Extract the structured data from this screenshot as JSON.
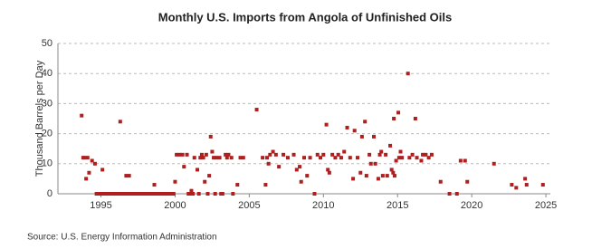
{
  "chart_data": {
    "type": "scatter",
    "title": "Monthly U.S. Imports from Angola of Unfinished Oils",
    "y_label": "Thousand Barrels per Day",
    "source": "Source: U.S. Energy Information Administration",
    "color": "#b01e1e",
    "grid": true,
    "xlim": [
      1992.1,
      2025.3
    ],
    "xticks": [
      1995,
      2000,
      2005,
      2010,
      2015,
      2020,
      2025
    ],
    "ylim": [
      0,
      50
    ],
    "yticks": [
      0,
      10,
      20,
      30,
      40,
      50
    ],
    "x": [
      1993.7,
      1993.8,
      1993.9,
      1994.0,
      1994.1,
      1994.2,
      1994.4,
      1994.6,
      1995.1,
      1996.3,
      1996.7,
      1996.9,
      1998.6,
      1994.7,
      1994.8,
      1994.9,
      1995.0,
      1995.2,
      1995.3,
      1995.4,
      1995.5,
      1995.6,
      1995.7,
      1995.8,
      1995.9,
      1996.0,
      1996.1,
      1996.2,
      1996.4,
      1996.5,
      1996.6,
      1996.8,
      1997.0,
      1997.1,
      1997.2,
      1997.3,
      1997.4,
      1997.5,
      1997.6,
      1997.7,
      1997.8,
      1997.9,
      1998.0,
      1998.1,
      1998.2,
      1998.3,
      1998.4,
      1998.5,
      1998.7,
      1998.8,
      1998.9,
      1999.0,
      1999.1,
      1999.2,
      1999.3,
      1999.4,
      1999.5,
      1999.6,
      1999.7,
      1999.8,
      1999.9,
      2000.0,
      2000.1,
      2000.3,
      2000.5,
      2000.6,
      2000.8,
      2000.9,
      2001.0,
      2001.1,
      2001.2,
      2001.3,
      2001.5,
      2001.6,
      2001.7,
      2001.8,
      2001.9,
      2002.0,
      2002.1,
      2002.2,
      2002.3,
      2002.4,
      2002.5,
      2002.6,
      2002.7,
      2002.8,
      2003.0,
      2003.1,
      2003.2,
      2003.4,
      2003.5,
      2003.6,
      2003.8,
      2003.9,
      2004.2,
      2004.4,
      2004.6,
      2005.5,
      2005.9,
      2006.1,
      2006.2,
      2006.3,
      2006.4,
      2006.6,
      2006.8,
      2007.0,
      2007.3,
      2007.6,
      2008.0,
      2008.2,
      2008.4,
      2008.5,
      2008.7,
      2008.9,
      2009.1,
      2009.4,
      2009.6,
      2009.8,
      2010.0,
      2010.2,
      2010.3,
      2010.4,
      2010.6,
      2010.8,
      2011.0,
      2011.2,
      2011.4,
      2011.6,
      2011.8,
      2012.0,
      2012.1,
      2012.3,
      2012.5,
      2012.6,
      2012.8,
      2012.9,
      2013.1,
      2013.2,
      2013.4,
      2013.5,
      2013.7,
      2013.8,
      2013.9,
      2014.0,
      2014.2,
      2014.3,
      2014.5,
      2014.6,
      2014.7,
      2014.8,
      2014.9,
      2014.75,
      2015.05,
      2015.1,
      2015.2,
      2015.3,
      2015.7,
      2015.8,
      2016.0,
      2016.2,
      2016.3,
      2016.6,
      2016.7,
      2016.9,
      2017.1,
      2017.3,
      2017.9,
      2018.5,
      2019.0,
      2019.25,
      2019.55,
      2019.7,
      2021.5,
      2022.7,
      2023.0,
      2023.6,
      2023.7,
      2024.8
    ],
    "values": [
      26,
      12,
      12,
      5,
      12,
      7,
      11,
      10,
      8,
      24,
      6,
      6,
      3,
      0,
      0,
      0,
      0,
      0,
      0,
      0,
      0,
      0,
      0,
      0,
      0,
      0,
      0,
      0,
      0,
      0,
      0,
      0,
      0,
      0,
      0,
      0,
      0,
      0,
      0,
      0,
      0,
      0,
      0,
      0,
      0,
      0,
      0,
      0,
      0,
      0,
      0,
      0,
      0,
      0,
      0,
      0,
      0,
      0,
      0,
      0,
      0,
      4,
      13,
      13,
      13,
      9,
      13,
      0,
      0,
      1,
      0,
      12,
      8,
      0,
      12,
      13,
      12,
      4,
      13,
      0,
      6,
      19,
      14,
      12,
      0,
      12,
      12,
      0,
      0,
      13,
      12,
      13,
      12,
      0,
      3,
      12,
      12,
      28,
      12,
      3,
      12,
      10,
      13,
      14,
      13,
      9,
      13,
      12,
      13,
      8,
      9,
      4,
      12,
      6,
      12,
      0,
      13,
      12,
      13,
      23,
      8,
      7,
      13,
      12,
      13,
      12,
      14,
      22,
      12,
      5,
      21,
      12,
      7,
      19,
      24,
      6,
      13,
      10,
      19,
      10,
      5,
      13,
      14,
      6,
      13,
      6,
      16,
      8,
      7,
      6,
      11,
      25,
      27,
      12,
      14,
      12,
      40,
      12,
      13,
      25,
      12,
      11,
      13,
      13,
      12,
      13,
      4,
      0,
      0,
      11,
      11,
      4,
      10,
      3,
      2,
      5,
      3,
      3
    ]
  }
}
